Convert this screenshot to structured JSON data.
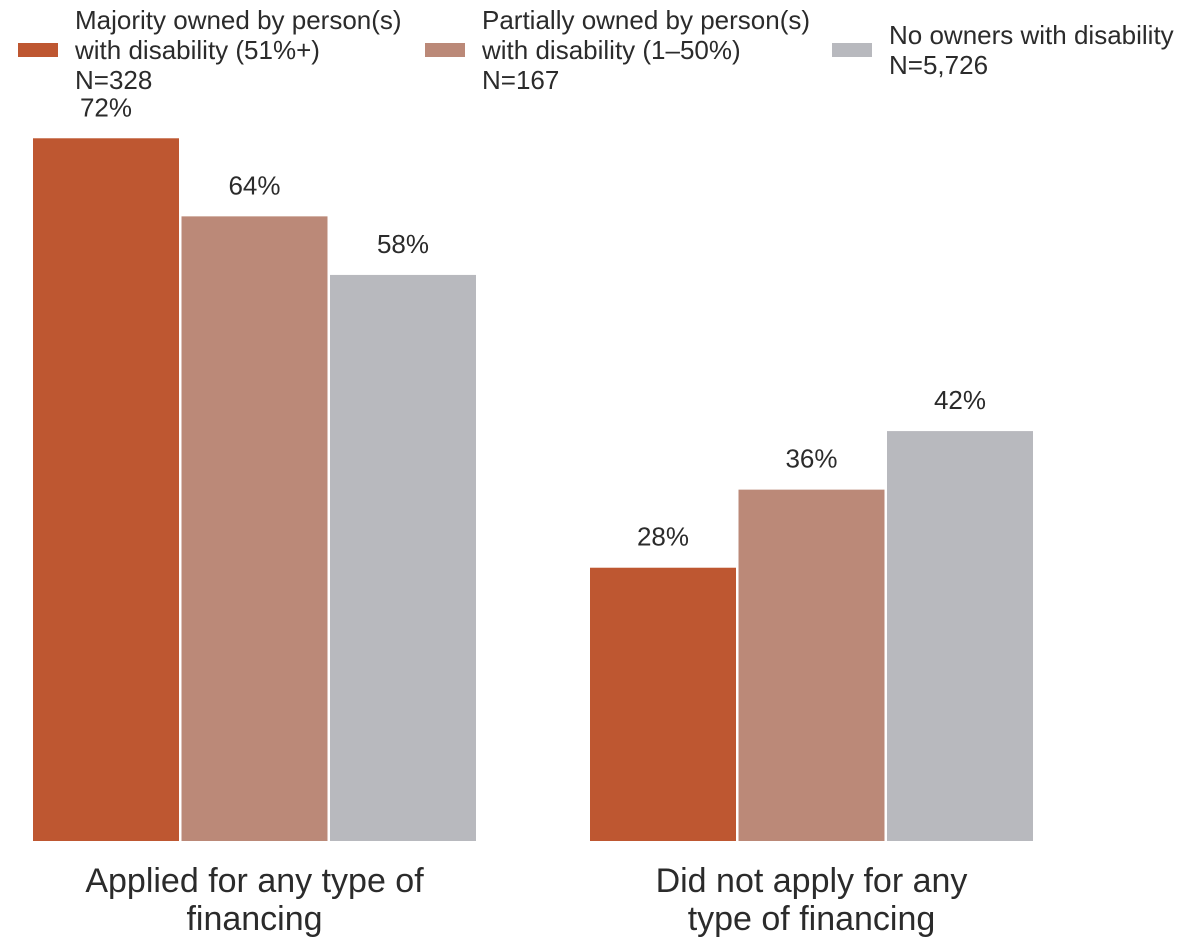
{
  "chart_data": {
    "type": "bar",
    "categories": [
      "Applied for any type of financing",
      "Did not apply for any type of financing"
    ],
    "unit": "%",
    "series": [
      {
        "name": "Majority owned by person(s) with disability (51%+)",
        "sample": "N=328",
        "color": "#BE5731",
        "values": [
          72,
          28
        ]
      },
      {
        "name": "Partially owned by person(s) with disability (1–50%)",
        "sample": "N=167",
        "color": "#BB8978",
        "values": [
          64,
          36
        ]
      },
      {
        "name": "No owners with disability",
        "sample": "N=5,726",
        "color": "#B8B9BE",
        "values": [
          58,
          42
        ]
      }
    ],
    "legend": "top",
    "grid": false
  }
}
